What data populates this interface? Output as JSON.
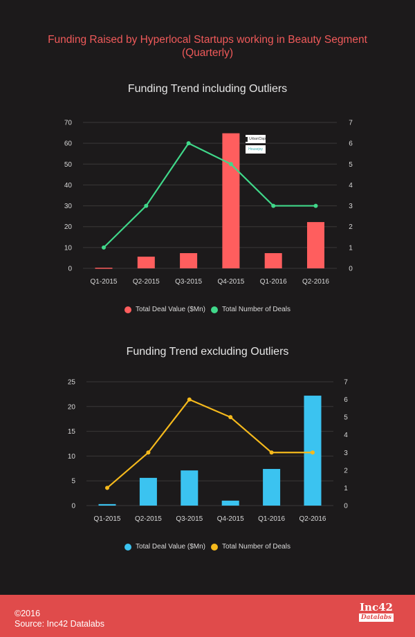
{
  "header": {
    "title_line1": "Funding Raised by Hyperlocal Startups working in Beauty Segment",
    "title_line2": "(Quarterly)"
  },
  "colors": {
    "background": "#1c1a1b",
    "accent_red": "#e04b4b",
    "chart1_bar": "#ff5e5e",
    "chart1_line": "#40d88a",
    "chart2_bar": "#3bc3f0",
    "chart2_line": "#f5b91c",
    "grid": "#3a3839"
  },
  "chart_data": [
    {
      "type": "bar+line",
      "title": "Funding Trend including Outliers",
      "categories": [
        "Q1-2015",
        "Q2-2015",
        "Q3-2015",
        "Q4-2015",
        "Q1-2016",
        "Q2-2016"
      ],
      "series": [
        {
          "name": "Total Deal Value ($Mn)",
          "type": "bar",
          "axis": "left",
          "values": [
            0.3,
            5.6,
            7.3,
            64.8,
            7.3,
            22.2
          ]
        },
        {
          "name": "Total Number of Deals",
          "type": "line",
          "axis": "right",
          "values": [
            1,
            3,
            6,
            5,
            3,
            3
          ]
        }
      ],
      "left_axis": {
        "ylim": [
          0,
          70
        ],
        "ticks": [
          "0",
          "10",
          "20",
          "30",
          "40",
          "50",
          "60",
          "70"
        ]
      },
      "right_axis": {
        "ylim": [
          0,
          7
        ],
        "ticks": [
          "0",
          "1",
          "2",
          "3",
          "4",
          "5",
          "6",
          "7"
        ]
      },
      "annotations": [
        {
          "category": "Q4-2015",
          "labels": [
            "UrbanClap",
            "Housejoy"
          ]
        }
      ],
      "grid": true,
      "legend": "bottom-center"
    },
    {
      "type": "bar+line",
      "title": "Funding Trend excluding Outliers",
      "categories": [
        "Q1-2015",
        "Q2-2015",
        "Q3-2015",
        "Q4-2015",
        "Q1-2016",
        "Q2-2016"
      ],
      "series": [
        {
          "name": "Total Deal Value ($Mn)",
          "type": "bar",
          "axis": "left",
          "values": [
            0.3,
            5.6,
            7.1,
            1.0,
            7.4,
            22.2
          ]
        },
        {
          "name": "Total Number of Deals",
          "type": "line",
          "axis": "right",
          "values": [
            1,
            3,
            6,
            5,
            3,
            3
          ]
        }
      ],
      "left_axis": {
        "ylim": [
          0,
          25
        ],
        "ticks": [
          "0",
          "5",
          "10",
          "15",
          "20",
          "25"
        ]
      },
      "right_axis": {
        "ylim": [
          0,
          7
        ],
        "ticks": [
          "0",
          "1",
          "2",
          "3",
          "4",
          "5",
          "6",
          "7"
        ]
      },
      "grid": true,
      "legend": "bottom-center"
    }
  ],
  "legends": [
    {
      "bar_label": "Total Deal Value ($Mn)",
      "line_label": "Total Number of Deals"
    },
    {
      "bar_label": "Total Deal Value ($Mn)",
      "line_label": "Total Number of Deals"
    }
  ],
  "footer": {
    "copyright": "©2016",
    "source": "Source: Inc42 Datalabs",
    "logo_top": "Inc42",
    "logo_bottom": "Datalabs"
  }
}
